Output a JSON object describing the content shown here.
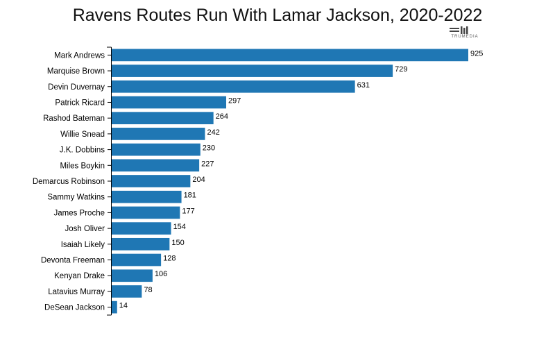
{
  "chart_data": {
    "type": "bar",
    "orientation": "horizontal",
    "title": "Ravens Routes Run With Lamar Jackson, 2020-2022",
    "categories": [
      "Mark Andrews",
      "Marquise Brown",
      "Devin Duvernay",
      "Patrick Ricard",
      "Rashod Bateman",
      "Willie Snead",
      "J.K. Dobbins",
      "Miles Boykin",
      "Demarcus Robinson",
      "Sammy Watkins",
      "James Proche",
      "Josh Oliver",
      "Isaiah Likely",
      "Devonta Freeman",
      "Kenyan Drake",
      "Latavius Murray",
      "DeSean Jackson"
    ],
    "values": [
      925,
      729,
      631,
      297,
      264,
      242,
      230,
      227,
      204,
      181,
      177,
      154,
      150,
      128,
      106,
      78,
      14
    ],
    "xlim": [
      0,
      925
    ],
    "grid": false,
    "bar_color": "#1f77b4",
    "data_labels": true
  },
  "branding": {
    "logo_text": "TRUMEDIA"
  }
}
